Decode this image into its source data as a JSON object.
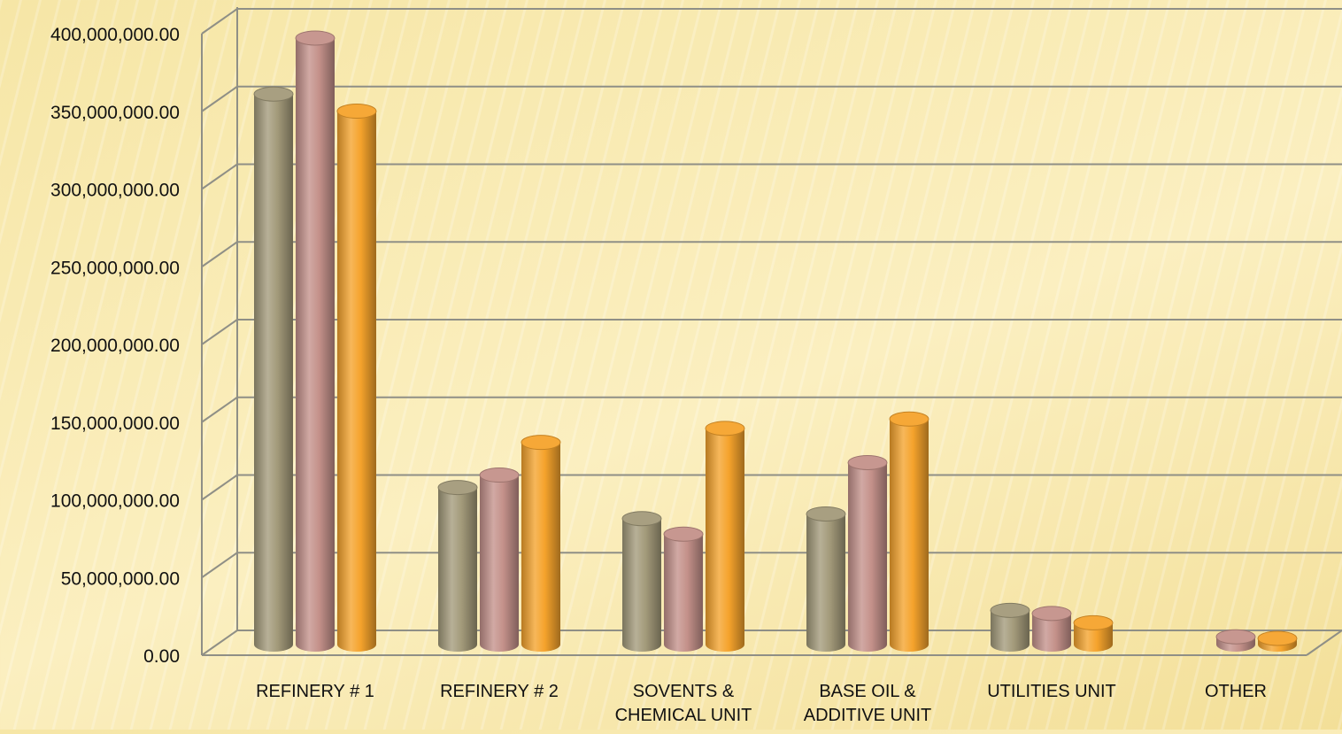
{
  "chart_data": {
    "type": "bar",
    "title": "",
    "xlabel": "",
    "ylabel": "",
    "ylim": [
      0,
      400000000
    ],
    "y_ticks": [
      0,
      50000000,
      100000000,
      150000000,
      200000000,
      250000000,
      300000000,
      350000000,
      400000000
    ],
    "y_tick_labels": [
      "0.00",
      "50,000,000.00",
      "100,000,000.00",
      "150,000,000.00",
      "200,000,000.00",
      "250,000,000.00",
      "300,000,000.00",
      "350,000,000.00",
      "400,000,000.00"
    ],
    "categories": [
      [
        "REFINERY #  1"
      ],
      [
        "REFINERY # 2"
      ],
      [
        "SOVENTS &",
        "CHEMICAL UNIT"
      ],
      [
        "BASE OIL &",
        "ADDITIVE UNIT"
      ],
      [
        "UTILITIES UNIT"
      ],
      [
        "OTHER"
      ]
    ],
    "grid": true,
    "legend": "none",
    "style": "3d-cylinder",
    "series": [
      {
        "color": "#a39a7a",
        "values": [
          354000000,
          101000000,
          81000000,
          84000000,
          22000000,
          0
        ]
      },
      {
        "color": "#c4918a",
        "values": [
          390000000,
          109000000,
          71000000,
          117000000,
          20000000,
          5000000
        ]
      },
      {
        "color": "#f5a32c",
        "values": [
          343000000,
          130000000,
          139000000,
          145000000,
          14000000,
          4000000
        ]
      }
    ]
  }
}
